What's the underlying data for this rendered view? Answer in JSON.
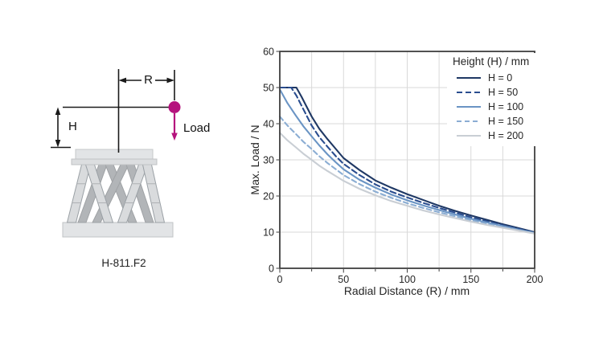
{
  "diagram": {
    "model_label": "H-811.F2",
    "radius_label": "R",
    "height_label": "H",
    "load_label": "Load",
    "load_color": "#b5137d"
  },
  "chart_data": {
    "type": "line",
    "title": "",
    "xlabel": "Radial Distance (R) / mm",
    "ylabel": "Max. Load / N",
    "xlim": [
      0,
      200
    ],
    "ylim": [
      0,
      60
    ],
    "xticks": [
      0,
      50,
      100,
      150,
      200
    ],
    "yticks": [
      0,
      10,
      20,
      30,
      40,
      50,
      60
    ],
    "x_minor_step": 25,
    "grid": true,
    "grid_color": "#d9d9d9",
    "axis_color": "#3f3f3f",
    "legend_title": "Height (H) / mm",
    "legend_position": "top-right",
    "series": [
      {
        "name": "H = 0",
        "color": "#1f3864",
        "dash": null,
        "points": [
          [
            0,
            50
          ],
          [
            13,
            50
          ],
          [
            17,
            47.5
          ],
          [
            25,
            42
          ],
          [
            31,
            38.6
          ],
          [
            37.5,
            35.7
          ],
          [
            44,
            33
          ],
          [
            50,
            30.5
          ],
          [
            62.5,
            27.2
          ],
          [
            75,
            24.3
          ],
          [
            87.5,
            22.3
          ],
          [
            100,
            20.5
          ],
          [
            112.5,
            18.9
          ],
          [
            125,
            17.3
          ],
          [
            137.5,
            15.9
          ],
          [
            150,
            14.6
          ],
          [
            162.5,
            13.4
          ],
          [
            175,
            12.2
          ],
          [
            187.5,
            11.1
          ],
          [
            200,
            10
          ]
        ]
      },
      {
        "name": "H = 50",
        "color": "#2a4d8f",
        "dash": "7,4",
        "points": [
          [
            0,
            50
          ],
          [
            9,
            50
          ],
          [
            13,
            47.8
          ],
          [
            25,
            39.5
          ],
          [
            31,
            36.3
          ],
          [
            37.5,
            33.6
          ],
          [
            44,
            31
          ],
          [
            50,
            28.9
          ],
          [
            62.5,
            25.8
          ],
          [
            75,
            23.2
          ],
          [
            87.5,
            21.2
          ],
          [
            100,
            19.6
          ],
          [
            112.5,
            18.1
          ],
          [
            125,
            16.7
          ],
          [
            137.5,
            15.4
          ],
          [
            150,
            14.1
          ],
          [
            162.5,
            13
          ],
          [
            175,
            11.9
          ],
          [
            187.5,
            10.9
          ],
          [
            200,
            9.9
          ]
        ]
      },
      {
        "name": "H = 100",
        "color": "#6a94c4",
        "dash": null,
        "points": [
          [
            0,
            49.5
          ],
          [
            6,
            45.7
          ],
          [
            12.5,
            42.3
          ],
          [
            18.5,
            39.3
          ],
          [
            25,
            36.5
          ],
          [
            31,
            34
          ],
          [
            37.5,
            31.5
          ],
          [
            44,
            29.3
          ],
          [
            50,
            27.4
          ],
          [
            62.5,
            24.5
          ],
          [
            75,
            22.3
          ],
          [
            87.5,
            20.4
          ],
          [
            100,
            18.8
          ],
          [
            112.5,
            17.4
          ],
          [
            125,
            16.1
          ],
          [
            137.5,
            14.9
          ],
          [
            150,
            13.7
          ],
          [
            162.5,
            12.7
          ],
          [
            175,
            11.7
          ],
          [
            187.5,
            10.7
          ],
          [
            200,
            9.8
          ]
        ]
      },
      {
        "name": "H = 150",
        "color": "#8badd3",
        "dash": "6,4",
        "points": [
          [
            0,
            42
          ],
          [
            6,
            39.5
          ],
          [
            12.5,
            37.2
          ],
          [
            18.5,
            35
          ],
          [
            25,
            33
          ],
          [
            31,
            31
          ],
          [
            37.5,
            29.1
          ],
          [
            44,
            27.4
          ],
          [
            50,
            25.8
          ],
          [
            62.5,
            23.3
          ],
          [
            75,
            21.2
          ],
          [
            87.5,
            19.5
          ],
          [
            100,
            18
          ],
          [
            112.5,
            16.7
          ],
          [
            125,
            15.5
          ],
          [
            137.5,
            14.4
          ],
          [
            150,
            13.3
          ],
          [
            162.5,
            12.3
          ],
          [
            175,
            11.4
          ],
          [
            187.5,
            10.5
          ],
          [
            200,
            9.7
          ]
        ]
      },
      {
        "name": "H = 200",
        "color": "#c9ced4",
        "dash": null,
        "points": [
          [
            0,
            37.5
          ],
          [
            6,
            35.4
          ],
          [
            12.5,
            33.5
          ],
          [
            18.5,
            31.7
          ],
          [
            25,
            30
          ],
          [
            31,
            28.4
          ],
          [
            37.5,
            26.9
          ],
          [
            44,
            25.5
          ],
          [
            50,
            24.2
          ],
          [
            62.5,
            22
          ],
          [
            75,
            20.2
          ],
          [
            87.5,
            18.6
          ],
          [
            100,
            17.3
          ],
          [
            112.5,
            16
          ],
          [
            125,
            14.9
          ],
          [
            137.5,
            13.9
          ],
          [
            150,
            12.9
          ],
          [
            162.5,
            12
          ],
          [
            175,
            11.2
          ],
          [
            187.5,
            10.4
          ],
          [
            200,
            9.6
          ]
        ]
      }
    ]
  }
}
